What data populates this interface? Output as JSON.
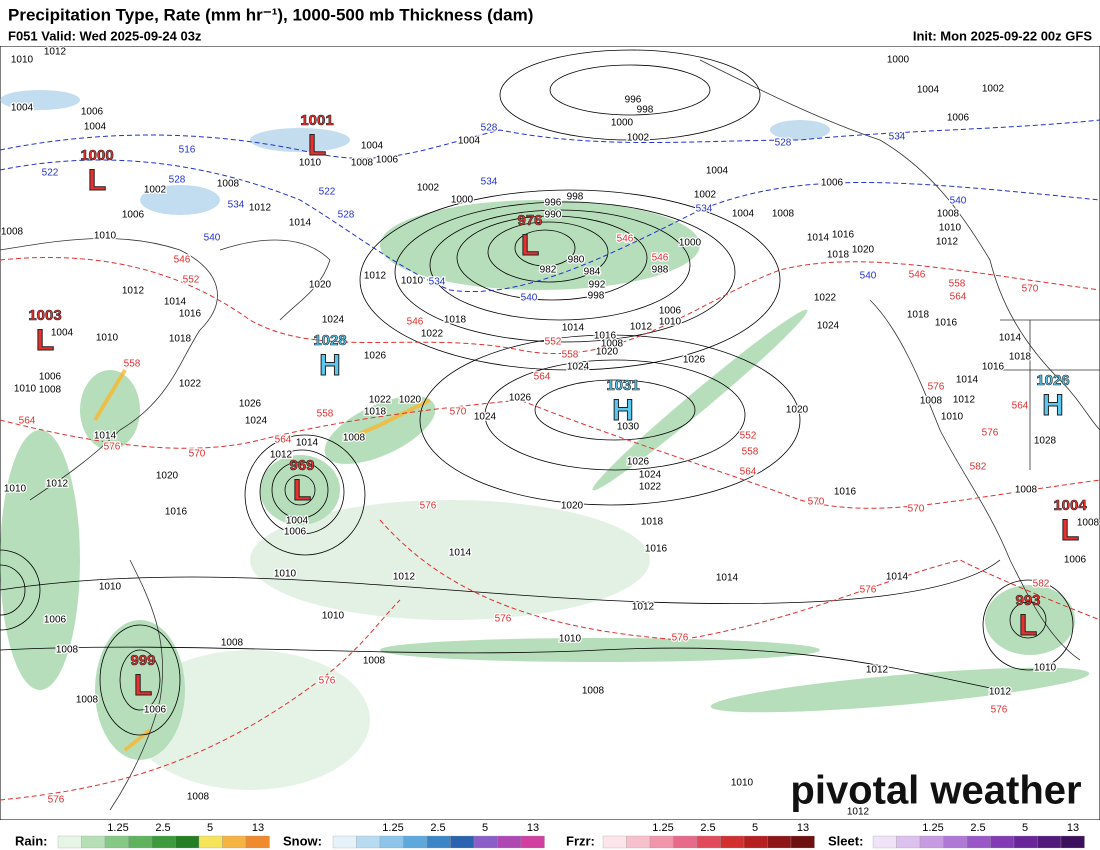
{
  "header": {
    "title": "Precipitation Type, Rate (mm hr⁻¹), 1000-500 mb Thickness (dam)",
    "valid": "F051 Valid: Wed 2025-09-24 03z",
    "init": "Init: Mon 2025-09-22 00z GFS"
  },
  "centers": [
    {
      "type": "L",
      "pressure": 1000
    },
    {
      "type": "L",
      "pressure": 1001
    },
    {
      "type": "L",
      "pressure": 976
    },
    {
      "type": "L",
      "pressure": 1003
    },
    {
      "type": "H",
      "pressure": 1028
    },
    {
      "type": "H",
      "pressure": 1031
    },
    {
      "type": "H",
      "pressure": 1026
    },
    {
      "type": "L",
      "pressure": 969
    },
    {
      "type": "L",
      "pressure": 1004
    },
    {
      "type": "L",
      "pressure": 993
    },
    {
      "type": "L",
      "pressure": 999
    }
  ],
  "isobar_labels": [
    1012,
    1010,
    1004,
    1006,
    1004,
    1002,
    1006,
    1008,
    1010,
    1008,
    1012,
    1014,
    1010,
    1008,
    1006,
    1004,
    1002,
    1000,
    996,
    990,
    998,
    980,
    982,
    984,
    988,
    992,
    998,
    1004,
    1000,
    1002,
    996,
    998,
    1000,
    1004,
    1002,
    1006,
    1004,
    1002,
    1000,
    1004,
    1008,
    1006,
    1012,
    1010,
    1008,
    1020,
    1018,
    1016,
    1014,
    1022,
    1024,
    1018,
    1016,
    1014,
    1018,
    1016,
    1014,
    1012,
    1008,
    1010,
    1028,
    1008,
    1006,
    1008,
    1010,
    1012,
    1020,
    1024,
    1026,
    1018,
    1022,
    1012,
    1010,
    1014,
    1016,
    1012,
    1008,
    1006,
    1010,
    1020,
    1024,
    1026,
    1026,
    1024,
    1030,
    1026,
    1024,
    1022,
    1020,
    1018,
    1016,
    1016,
    1020,
    1014,
    1012,
    1014,
    1014,
    1012,
    1010,
    1010,
    1012,
    1008,
    1008,
    1010,
    1012,
    1010,
    1004,
    1006,
    1012,
    1014,
    1008,
    1018,
    1022,
    1020,
    1026,
    1024,
    1020,
    1016,
    1010,
    1008,
    1008,
    1006,
    1006,
    1008,
    1008,
    1014,
    1012,
    1010,
    1022,
    1018,
    1016,
    1014,
    1012,
    1010,
    1004,
    1006,
    1008,
    1010
  ],
  "thickness_labels": [
    522,
    516,
    528,
    534,
    540,
    522,
    528,
    534,
    540,
    528,
    534,
    546,
    534,
    528,
    534,
    540,
    540,
    546,
    552,
    558,
    564,
    576,
    570,
    546,
    552,
    558,
    564,
    558,
    564,
    570,
    546,
    552,
    558,
    564,
    570,
    570,
    546,
    558,
    564,
    570,
    576,
    564,
    576,
    582,
    582,
    576,
    576,
    576,
    576,
    576,
    576,
    576
  ],
  "legend": [
    {
      "name": "Rain:",
      "ticks": [
        "1.25",
        "2.5",
        "5",
        "13"
      ]
    },
    {
      "name": "Snow:",
      "ticks": [
        "1.25",
        "2.5",
        "5",
        "13"
      ]
    },
    {
      "name": "Frzr:",
      "ticks": [
        "1.25",
        "2.5",
        "5",
        "13"
      ]
    },
    {
      "name": "Sleet:",
      "ticks": [
        "1.25",
        "2.5",
        "5",
        "13"
      ]
    }
  ],
  "watermark": "pivotal weather"
}
